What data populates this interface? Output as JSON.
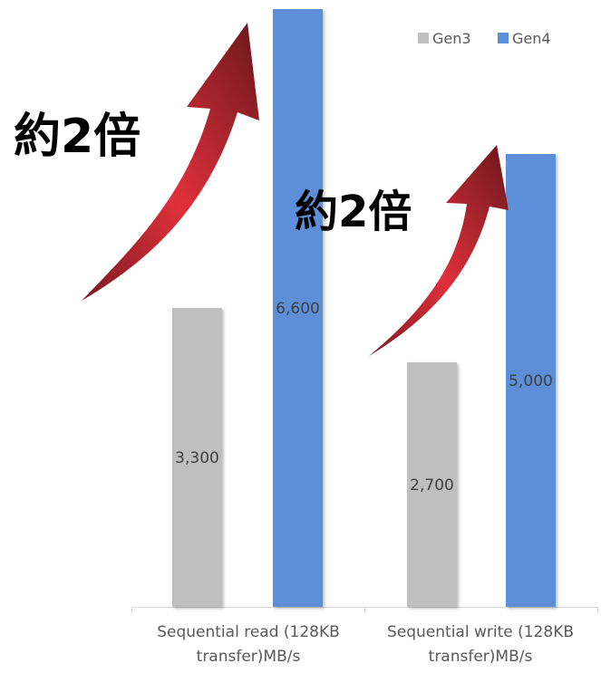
{
  "chart_data": {
    "type": "bar",
    "categories": [
      "Sequential read (128KB transfer)MB/s",
      "Sequential write (128KB transfer)MB/s"
    ],
    "category_lines": [
      [
        "Sequential read (128KB",
        "transfer)MB/s"
      ],
      [
        "Sequential write (128KB",
        "transfer)MB/s"
      ]
    ],
    "series": [
      {
        "name": "Gen3",
        "values": [
          3300,
          2700
        ],
        "labels": [
          "3,300",
          "2,700"
        ],
        "color": "#bfbfbf"
      },
      {
        "name": "Gen4",
        "values": [
          6600,
          5000
        ],
        "labels": [
          "6,600",
          "5,000"
        ],
        "color": "#5b8fd8"
      }
    ],
    "ylim": [
      0,
      6600
    ],
    "grid": false,
    "legend": "top-right",
    "title": "",
    "xlabel": "",
    "ylabel": ""
  },
  "annotations": [
    {
      "text": "約2倍",
      "arrow_color": "#e0303a"
    },
    {
      "text": "約2倍",
      "arrow_color": "#e0303a"
    }
  ]
}
